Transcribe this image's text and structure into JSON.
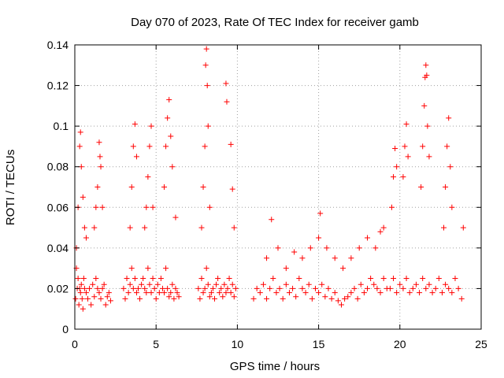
{
  "colors": {
    "series": "#ff0000",
    "axis": "#000000",
    "grid": "#a0a0a0",
    "background": "#ffffff"
  },
  "chart_data": {
    "type": "scatter",
    "title": "Day 070 of 2023, Rate Of TEC Index for receiver gamb",
    "xlabel": "GPS time / hours",
    "ylabel": "ROTI / TECUs",
    "xlim": [
      0,
      25
    ],
    "ylim": [
      0,
      0.14
    ],
    "xticks": [
      0,
      5,
      10,
      15,
      20,
      25
    ],
    "xtick_labels": [
      "0",
      "5",
      "10",
      "15",
      "20",
      "25"
    ],
    "yticks": [
      0,
      0.02,
      0.04,
      0.06,
      0.08,
      0.1,
      0.12,
      0.14
    ],
    "ytick_labels": [
      "0",
      "0.02",
      "0.04",
      "0.06",
      "0.08",
      "0.1",
      "0.12",
      "0.14"
    ],
    "grid": true,
    "marker": "plus",
    "series": [
      {
        "x": [
          0.05,
          0.1,
          0.15,
          0.2,
          0.25,
          0.3,
          0.35,
          0.4,
          0.45,
          0.5,
          0.55,
          0.6,
          0.7,
          0.8,
          0.9,
          1.0,
          1.1,
          1.2,
          1.3,
          1.4,
          1.5,
          1.6,
          1.7,
          1.8,
          1.9,
          2.0,
          2.1,
          2.2,
          0.1,
          0.2,
          0.3,
          0.35,
          0.4,
          0.5,
          0.6,
          0.7,
          1.2,
          1.3,
          1.4,
          1.5,
          1.55,
          1.6,
          1.7,
          3.0,
          3.1,
          3.2,
          3.3,
          3.4,
          3.5,
          3.6,
          3.7,
          3.8,
          3.9,
          4.0,
          4.1,
          4.2,
          4.3,
          4.4,
          4.5,
          4.6,
          4.7,
          4.8,
          4.9,
          5.0,
          5.1,
          5.2,
          5.3,
          5.4,
          5.5,
          5.6,
          5.7,
          5.8,
          5.9,
          6.0,
          6.1,
          6.2,
          6.3,
          6.4,
          3.4,
          3.5,
          3.6,
          3.7,
          3.8,
          4.3,
          4.4,
          4.5,
          4.6,
          4.7,
          4.8,
          5.5,
          5.6,
          5.7,
          5.8,
          5.9,
          6.0,
          6.2
        ],
        "y": [
          0.015,
          0.03,
          0.02,
          0.025,
          0.012,
          0.02,
          0.018,
          0.022,
          0.015,
          0.01,
          0.025,
          0.02,
          0.018,
          0.015,
          0.02,
          0.012,
          0.022,
          0.016,
          0.025,
          0.02,
          0.018,
          0.015,
          0.02,
          0.022,
          0.012,
          0.016,
          0.018,
          0.014,
          0.04,
          0.06,
          0.09,
          0.097,
          0.08,
          0.065,
          0.05,
          0.045,
          0.05,
          0.06,
          0.07,
          0.092,
          0.085,
          0.08,
          0.06,
          0.02,
          0.015,
          0.025,
          0.018,
          0.022,
          0.03,
          0.02,
          0.025,
          0.018,
          0.02,
          0.015,
          0.022,
          0.025,
          0.02,
          0.018,
          0.03,
          0.022,
          0.018,
          0.025,
          0.02,
          0.015,
          0.022,
          0.018,
          0.025,
          0.02,
          0.018,
          0.03,
          0.02,
          0.016,
          0.018,
          0.022,
          0.015,
          0.02,
          0.018,
          0.016,
          0.05,
          0.07,
          0.09,
          0.101,
          0.085,
          0.05,
          0.06,
          0.075,
          0.09,
          0.1,
          0.06,
          0.07,
          0.09,
          0.104,
          0.113,
          0.095,
          0.08,
          0.055
        ]
      },
      {
        "x": [
          7.6,
          7.7,
          7.8,
          7.9,
          8.0,
          8.1,
          8.2,
          8.3,
          8.4,
          8.5,
          8.6,
          8.7,
          8.8,
          8.9,
          9.0,
          9.1,
          9.2,
          9.3,
          9.4,
          9.5,
          9.6,
          9.7,
          9.8,
          9.9,
          7.8,
          7.9,
          8.0,
          8.05,
          8.1,
          8.15,
          8.2,
          8.3,
          9.3,
          9.35,
          9.6,
          9.7,
          9.8
        ],
        "y": [
          0.02,
          0.015,
          0.025,
          0.018,
          0.02,
          0.03,
          0.022,
          0.016,
          0.018,
          0.02,
          0.015,
          0.022,
          0.025,
          0.018,
          0.02,
          0.016,
          0.022,
          0.018,
          0.02,
          0.025,
          0.018,
          0.022,
          0.016,
          0.02,
          0.05,
          0.07,
          0.09,
          0.13,
          0.138,
          0.12,
          0.1,
          0.06,
          0.121,
          0.112,
          0.091,
          0.069,
          0.05
        ]
      },
      {
        "x": [
          11.0,
          11.2,
          11.4,
          11.6,
          11.8,
          12.0,
          12.2,
          12.4,
          12.6,
          12.8,
          13.0,
          13.2,
          13.4,
          13.6,
          13.8,
          14.0,
          14.2,
          14.4,
          14.6,
          14.8,
          15.0,
          15.2,
          15.4,
          15.6,
          15.8,
          16.0,
          16.2,
          16.4,
          16.6,
          16.8,
          17.0,
          17.2,
          17.4,
          17.6,
          17.8,
          18.0,
          18.2,
          18.4,
          18.6,
          18.8,
          19.0,
          19.2,
          11.8,
          12.1,
          12.5,
          13.0,
          13.5,
          14.0,
          14.5,
          15.0,
          15.1,
          15.5,
          16.0,
          16.5,
          17.0,
          17.5,
          18.0,
          18.5,
          18.8,
          19.0
        ],
        "y": [
          0.015,
          0.02,
          0.018,
          0.022,
          0.015,
          0.02,
          0.025,
          0.018,
          0.02,
          0.015,
          0.022,
          0.018,
          0.02,
          0.016,
          0.025,
          0.02,
          0.018,
          0.022,
          0.015,
          0.02,
          0.018,
          0.022,
          0.016,
          0.02,
          0.015,
          0.018,
          0.014,
          0.012,
          0.015,
          0.016,
          0.018,
          0.02,
          0.015,
          0.022,
          0.018,
          0.02,
          0.025,
          0.022,
          0.02,
          0.018,
          0.025,
          0.02,
          0.035,
          0.054,
          0.04,
          0.03,
          0.038,
          0.035,
          0.04,
          0.045,
          0.057,
          0.04,
          0.035,
          0.03,
          0.035,
          0.04,
          0.045,
          0.04,
          0.048,
          0.05
        ]
      },
      {
        "x": [
          19.4,
          19.6,
          19.8,
          20.0,
          20.2,
          20.4,
          20.6,
          20.8,
          21.0,
          21.2,
          21.4,
          21.6,
          21.8,
          22.0,
          22.2,
          22.4,
          22.6,
          22.8,
          23.0,
          23.2,
          23.4,
          23.6,
          23.8,
          19.5,
          19.6,
          19.7,
          19.8,
          20.2,
          20.3,
          20.4,
          20.5,
          21.3,
          21.4,
          21.5,
          21.55,
          21.6,
          21.65,
          21.7,
          21.8,
          22.7,
          22.8,
          22.9,
          23.0,
          23.1,
          23.2,
          23.9
        ],
        "y": [
          0.02,
          0.025,
          0.018,
          0.022,
          0.02,
          0.025,
          0.018,
          0.02,
          0.022,
          0.018,
          0.025,
          0.02,
          0.022,
          0.018,
          0.02,
          0.025,
          0.018,
          0.022,
          0.02,
          0.018,
          0.025,
          0.02,
          0.015,
          0.06,
          0.075,
          0.089,
          0.08,
          0.075,
          0.09,
          0.101,
          0.085,
          0.07,
          0.09,
          0.11,
          0.124,
          0.13,
          0.125,
          0.1,
          0.085,
          0.05,
          0.07,
          0.09,
          0.104,
          0.08,
          0.06,
          0.05
        ]
      }
    ]
  }
}
